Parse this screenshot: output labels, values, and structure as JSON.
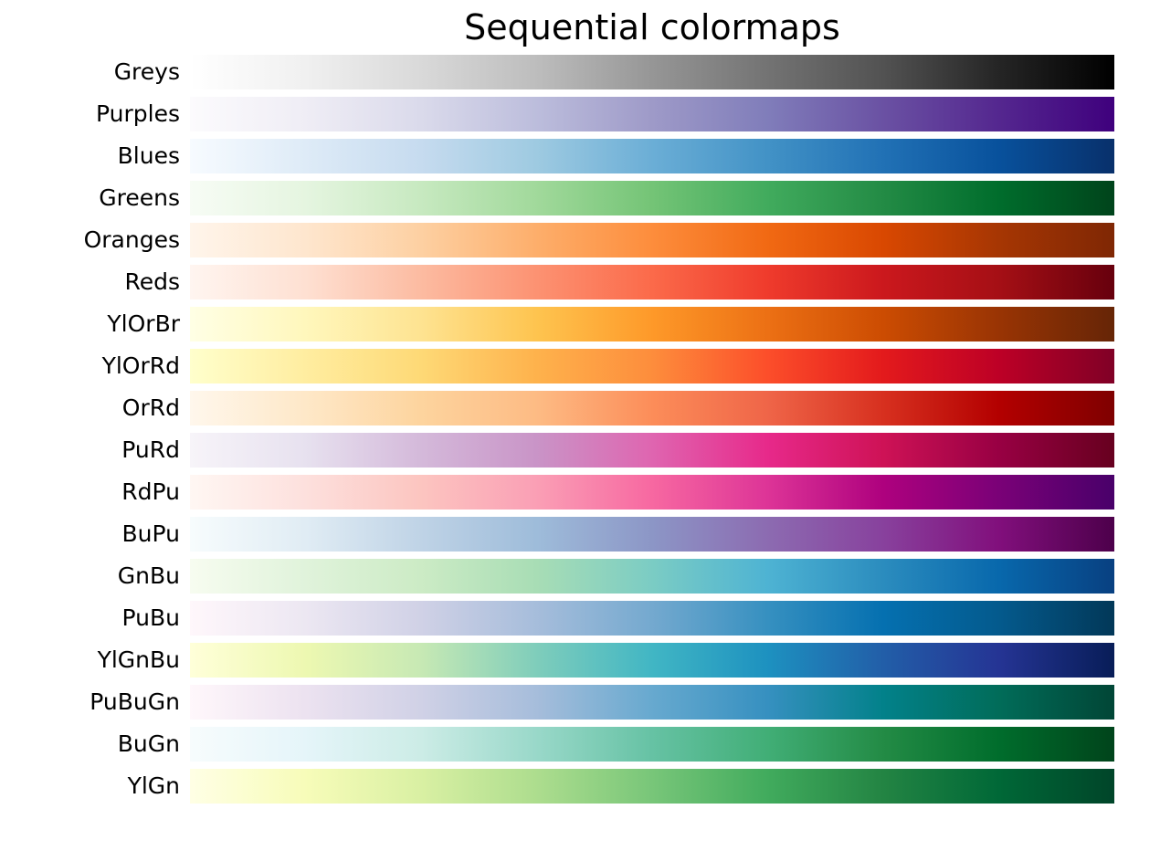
{
  "chart_data": {
    "type": "heatmap",
    "title": "Sequential colormaps",
    "colormaps": [
      {
        "name": "Greys",
        "colors": [
          "#ffffff",
          "#f0f0f0",
          "#d9d9d9",
          "#bdbdbd",
          "#969696",
          "#737373",
          "#525252",
          "#252525",
          "#000000"
        ]
      },
      {
        "name": "Purples",
        "colors": [
          "#fcfbfd",
          "#efedf5",
          "#dadaeb",
          "#bcbddc",
          "#9e9ac8",
          "#807dba",
          "#6a51a3",
          "#54278f",
          "#3f007d"
        ]
      },
      {
        "name": "Blues",
        "colors": [
          "#f7fbff",
          "#deebf7",
          "#c6dbef",
          "#9ecae1",
          "#6baed6",
          "#4292c6",
          "#2171b5",
          "#08519c",
          "#08306b"
        ]
      },
      {
        "name": "Greens",
        "colors": [
          "#f7fcf5",
          "#e5f5e0",
          "#c7e9c0",
          "#a1d99b",
          "#74c476",
          "#41ab5d",
          "#238b45",
          "#006d2c",
          "#00441b"
        ]
      },
      {
        "name": "Oranges",
        "colors": [
          "#fff5eb",
          "#fee6ce",
          "#fdd0a2",
          "#fdae6b",
          "#fd8d3c",
          "#f16913",
          "#d94801",
          "#a63603",
          "#7f2704"
        ]
      },
      {
        "name": "Reds",
        "colors": [
          "#fff5f0",
          "#fee0d2",
          "#fcbba1",
          "#fc9272",
          "#fb6a4a",
          "#ef3b2c",
          "#cb181d",
          "#a50f15",
          "#67000d"
        ]
      },
      {
        "name": "YlOrBr",
        "colors": [
          "#ffffe5",
          "#fff7bc",
          "#fee391",
          "#fec44f",
          "#fe9929",
          "#ec7014",
          "#cc4c02",
          "#993404",
          "#662506"
        ]
      },
      {
        "name": "YlOrRd",
        "colors": [
          "#ffffcc",
          "#ffeda0",
          "#fed976",
          "#feb24c",
          "#fd8d3c",
          "#fc4e2a",
          "#e31a1c",
          "#bd0026",
          "#800026"
        ]
      },
      {
        "name": "OrRd",
        "colors": [
          "#fff7ec",
          "#fee8c8",
          "#fdd49e",
          "#fdbb84",
          "#fc8d59",
          "#ef6548",
          "#d7301f",
          "#b30000",
          "#7f0000"
        ]
      },
      {
        "name": "PuRd",
        "colors": [
          "#f7f4f9",
          "#e7e1ef",
          "#d4b9da",
          "#c994c7",
          "#df65b0",
          "#e7298a",
          "#ce1256",
          "#980043",
          "#67001f"
        ]
      },
      {
        "name": "RdPu",
        "colors": [
          "#fff7f3",
          "#fde0dd",
          "#fcc5c0",
          "#fa9fb5",
          "#f768a1",
          "#dd3497",
          "#ae017e",
          "#7a0177",
          "#49006a"
        ]
      },
      {
        "name": "BuPu",
        "colors": [
          "#f7fcfd",
          "#e0ecf4",
          "#bfd3e6",
          "#9ebcda",
          "#8c96c6",
          "#8c6bb1",
          "#88419d",
          "#810f7c",
          "#4d004b"
        ]
      },
      {
        "name": "GnBu",
        "colors": [
          "#f7fcf0",
          "#e0f3db",
          "#ccebc5",
          "#a8ddb5",
          "#7bccc4",
          "#4eb3d3",
          "#2b8cbe",
          "#0868ac",
          "#084081"
        ]
      },
      {
        "name": "PuBu",
        "colors": [
          "#fff7fb",
          "#ece7f2",
          "#d0d1e6",
          "#a6bddb",
          "#74a9cf",
          "#3690c0",
          "#0570b0",
          "#045a8d",
          "#023858"
        ]
      },
      {
        "name": "YlGnBu",
        "colors": [
          "#ffffd9",
          "#edf8b1",
          "#c7e9b4",
          "#7fcdbb",
          "#41b6c4",
          "#1d91c0",
          "#225ea8",
          "#253494",
          "#081d58"
        ]
      },
      {
        "name": "PuBuGn",
        "colors": [
          "#fff7fb",
          "#ece2f0",
          "#d0d1e6",
          "#a6bddb",
          "#67a9cf",
          "#3690c0",
          "#02818a",
          "#016c59",
          "#014636"
        ]
      },
      {
        "name": "BuGn",
        "colors": [
          "#f7fcfd",
          "#e5f5f9",
          "#ccece6",
          "#99d8c9",
          "#66c2a4",
          "#41ae76",
          "#238b45",
          "#006d2c",
          "#00441b"
        ]
      },
      {
        "name": "YlGn",
        "colors": [
          "#ffffe5",
          "#f7fcb9",
          "#d9f0a3",
          "#addd8e",
          "#78c679",
          "#41ab5d",
          "#238443",
          "#006837",
          "#004529"
        ]
      }
    ],
    "xlabel": "",
    "ylabel": "",
    "grid": false,
    "axes_visible": false
  }
}
